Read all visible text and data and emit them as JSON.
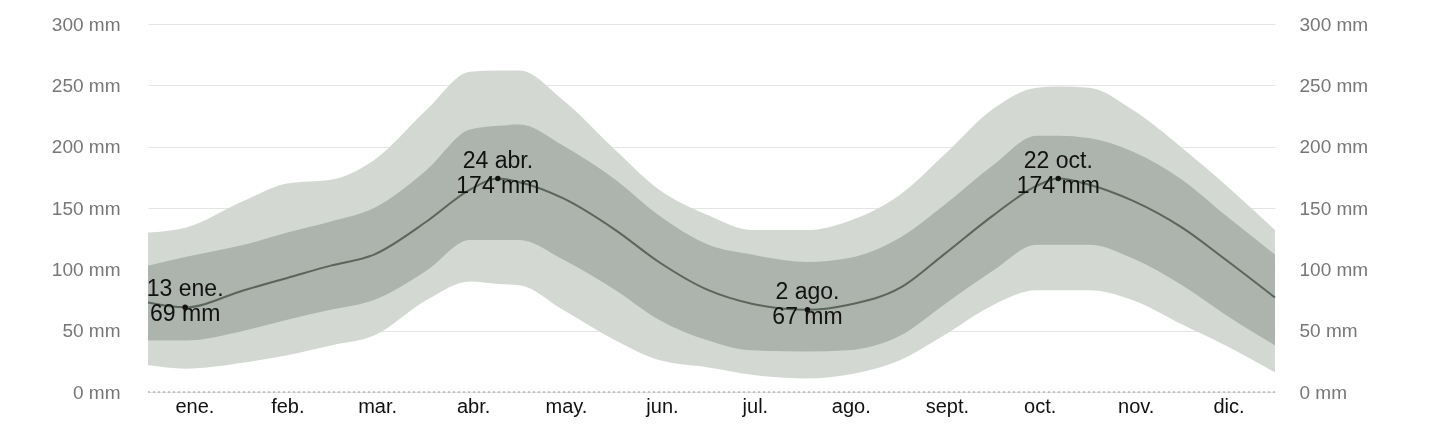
{
  "chart_data": {
    "type": "line",
    "x": [
      "--01-01",
      "--01-13",
      "--02-01",
      "--02-15",
      "--03-01",
      "--03-15",
      "--04-01",
      "--04-15",
      "--04-24",
      "--05-01",
      "--05-15",
      "--06-01",
      "--06-15",
      "--07-01",
      "--07-15",
      "--08-02",
      "--08-15",
      "--09-01",
      "--09-15",
      "--10-01",
      "--10-15",
      "--10-22",
      "--11-01",
      "--11-15",
      "--12-01",
      "--12-15",
      "--12-31"
    ],
    "xlim": [
      "--01-01",
      "--12-31"
    ],
    "xticks": [
      {
        "value": "--01-16",
        "label": "ene."
      },
      {
        "value": "--02-15",
        "label": "feb."
      },
      {
        "value": "--03-16",
        "label": "mar."
      },
      {
        "value": "--04-16",
        "label": "abr."
      },
      {
        "value": "--05-16",
        "label": "may."
      },
      {
        "value": "--06-16",
        "label": "jun."
      },
      {
        "value": "--07-16",
        "label": "jul."
      },
      {
        "value": "--08-16",
        "label": "ago."
      },
      {
        "value": "--09-16",
        "label": "sept."
      },
      {
        "value": "--10-16",
        "label": "oct."
      },
      {
        "value": "--11-16",
        "label": "nov."
      },
      {
        "value": "--12-16",
        "label": "dic."
      }
    ],
    "ylim": [
      0,
      300
    ],
    "yticks": [
      {
        "value": 0,
        "label": "0 mm"
      },
      {
        "value": 50,
        "label": "50 mm"
      },
      {
        "value": 100,
        "label": "100 mm"
      },
      {
        "value": 150,
        "label": "150 mm"
      },
      {
        "value": 200,
        "label": "200 mm"
      },
      {
        "value": 250,
        "label": "250 mm"
      },
      {
        "value": 300,
        "label": "300 mm"
      }
    ],
    "y2lim": [
      0,
      300
    ],
    "y2ticks": [
      {
        "value": 0,
        "label": "0 mm"
      },
      {
        "value": 50,
        "label": "50 mm"
      },
      {
        "value": 100,
        "label": "100 mm"
      },
      {
        "value": 150,
        "label": "150 mm"
      },
      {
        "value": 200,
        "label": "200 mm"
      },
      {
        "value": 250,
        "label": "250 mm"
      },
      {
        "value": 300,
        "label": "300 mm"
      }
    ],
    "series": [
      {
        "color": "#5b665b",
        "values": [
          73,
          69,
          83,
          93,
          103,
          112,
          139,
          165,
          174,
          171,
          158,
          132,
          106,
          83,
          72,
          67,
          71,
          85,
          112,
          144,
          168,
          174,
          169,
          156,
          134,
          108,
          77
        ],
        "lower": [
          42,
          42,
          50,
          59,
          67,
          75,
          99,
          124,
          124,
          124,
          108,
          83,
          59,
          42,
          34,
          33,
          34,
          46,
          71,
          99,
          120,
          120,
          120,
          109,
          87,
          63,
          38
        ],
        "upper": [
          103,
          110,
          120,
          130,
          139,
          150,
          181,
          214,
          217,
          218,
          201,
          173,
          144,
          120,
          112,
          106,
          109,
          126,
          152,
          185,
          209,
          209,
          207,
          196,
          173,
          144,
          112
        ]
      },
      {
        "color": "#d3d9d2",
        "values": [
          null,
          null,
          null,
          null,
          null,
          null,
          null,
          null,
          null,
          null,
          null,
          null,
          null,
          null,
          null,
          null,
          null,
          null,
          null,
          null,
          null,
          null,
          null,
          null,
          null,
          null,
          null
        ],
        "lower": [
          22,
          19,
          24,
          30,
          38,
          46,
          75,
          90,
          88,
          87,
          67,
          42,
          26,
          20,
          14,
          11,
          14,
          26,
          46,
          71,
          83,
          83,
          83,
          75,
          55,
          38,
          16
        ],
        "upper": [
          130,
          134,
          156,
          170,
          173,
          189,
          230,
          261,
          262,
          262,
          238,
          197,
          165,
          144,
          132,
          132,
          139,
          161,
          193,
          231,
          248,
          249,
          248,
          230,
          199,
          169,
          132
        ]
      }
    ],
    "annotations": [
      {
        "text": "13 ene.\n69 mm",
        "x": "--01-13",
        "y": 69
      },
      {
        "text": "24 abr.\n174 mm",
        "x": "--04-24",
        "y": 174
      },
      {
        "text": "2 ago.\n67 mm",
        "x": "--08-02",
        "y": 67
      },
      {
        "text": "22 oct.\n174 mm",
        "x": "--10-22",
        "y": 174
      }
    ],
    "grid": "y",
    "marker": "none",
    "line_style": "solid"
  }
}
